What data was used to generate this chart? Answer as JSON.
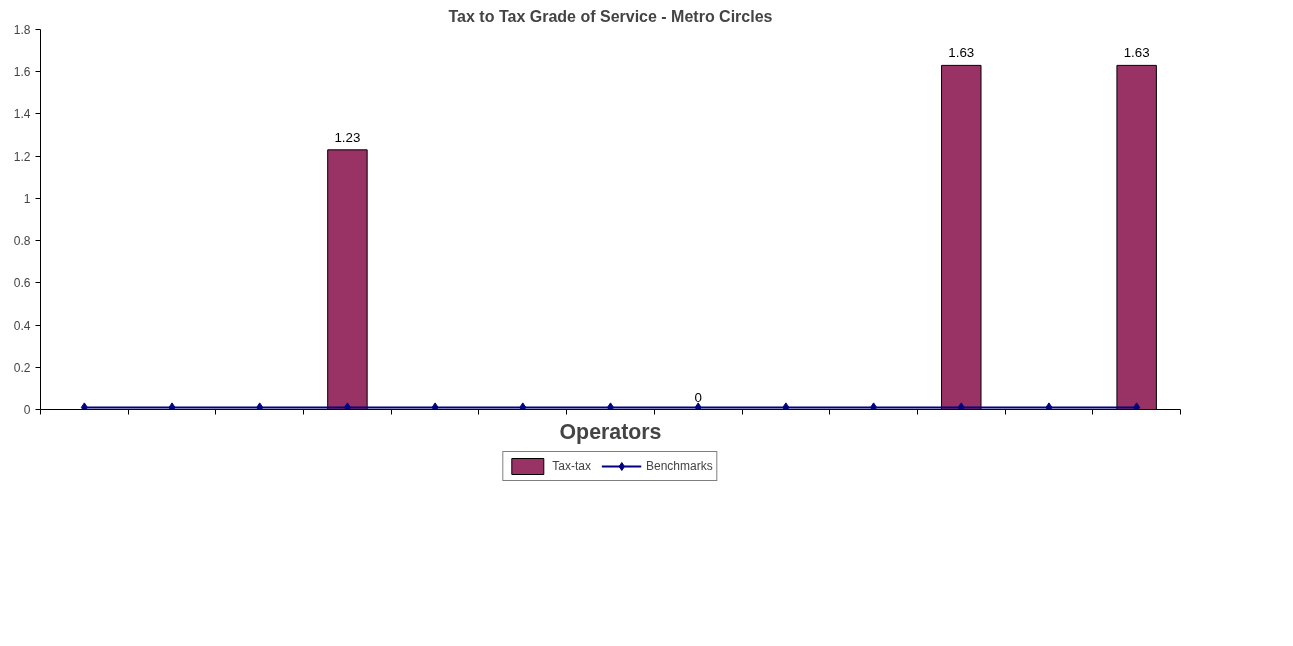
{
  "chart_data": {
    "type": "bar",
    "title": "Tax to Tax Grade of Service - Metro Circles",
    "xlabel": "Operators",
    "categories": [
      null,
      null,
      null,
      null,
      null,
      null,
      null,
      null,
      null,
      null,
      null,
      null,
      null
    ],
    "series": [
      {
        "name": "Tax-tax",
        "color": "#993366",
        "values": [
          0,
          0,
          0,
          1.23,
          0,
          0,
          0,
          0,
          0,
          0,
          1.63,
          0,
          1.63
        ],
        "value_labels": [
          null,
          null,
          null,
          "1.23",
          null,
          null,
          null,
          "0",
          null,
          null,
          "1.63",
          null,
          "1.63"
        ]
      },
      {
        "name": "Benchmarks",
        "type": "line",
        "color": "#000080",
        "marker": "diamond",
        "values": [
          0.01,
          0.01,
          0.01,
          0.01,
          0.01,
          0.01,
          0.01,
          0.01,
          0.01,
          0.01,
          0.01,
          0.01,
          0.01
        ]
      }
    ],
    "ylim": [
      0,
      1.8
    ],
    "yticks": [
      0,
      0.2,
      0.4,
      0.6,
      0.8,
      1,
      1.2,
      1.4,
      1.6,
      1.8
    ],
    "grid": false,
    "legend": "bottom",
    "tick_labels": "y"
  }
}
